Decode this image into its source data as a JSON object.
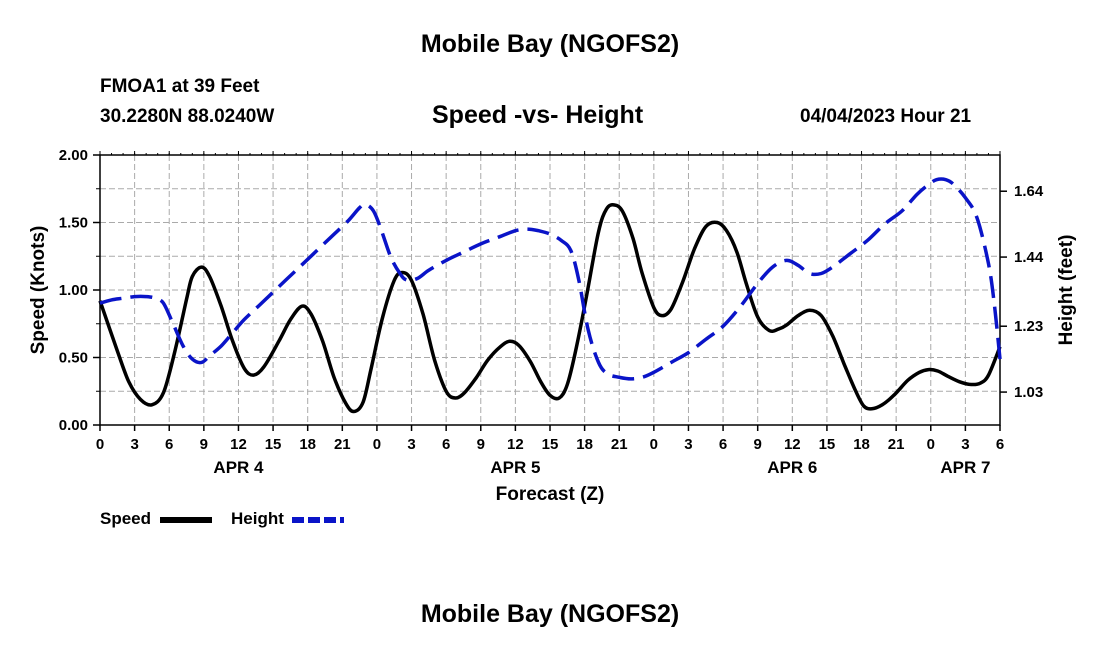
{
  "header": {
    "title": "Mobile Bay (NGOFS2)",
    "station": "FMOA1 at 39 Feet",
    "coords": "30.2280N  88.0240W",
    "subtitle": "Speed -vs- Height",
    "datetime": "04/04/2023 Hour 21",
    "footer_title": "Mobile Bay (NGOFS2)"
  },
  "legend": {
    "speed_label": "Speed",
    "height_label": "Height"
  },
  "colors": {
    "speed": "#000000",
    "height": "#0a14c8",
    "grid": "#aaaaaa"
  },
  "chart_data": {
    "type": "line",
    "title": "Speed -vs- Height",
    "xlabel": "Forecast (Z)",
    "ylabel": "Speed (Knots)",
    "y2label": "Height (feet)",
    "x_range_hours": [
      0,
      78
    ],
    "ylim": [
      0,
      2.0
    ],
    "y2lim": [
      0.93,
      1.75
    ],
    "yticks": [
      "0.00",
      "0.50",
      "1.00",
      "1.50",
      "2.00"
    ],
    "y2ticks": [
      "1.03",
      "1.23",
      "1.44",
      "1.64"
    ],
    "xtick_labels": [
      "0",
      "3",
      "6",
      "9",
      "12",
      "15",
      "18",
      "21",
      "0",
      "3",
      "6",
      "9",
      "12",
      "15",
      "18",
      "21",
      "0",
      "3",
      "6",
      "9",
      "12",
      "15",
      "18",
      "21",
      "0",
      "3",
      "6"
    ],
    "date_labels": [
      {
        "text": "APR 4",
        "hour": 12
      },
      {
        "text": "APR 5",
        "hour": 36
      },
      {
        "text": "APR 6",
        "hour": 60
      },
      {
        "text": "APR 7",
        "hour": 75
      }
    ],
    "grid": true,
    "series": [
      {
        "name": "Speed",
        "axis": "left",
        "style": "solid",
        "points": [
          [
            0,
            0.92
          ],
          [
            1.5,
            0.55
          ],
          [
            2.5,
            0.32
          ],
          [
            3.5,
            0.19
          ],
          [
            4.5,
            0.15
          ],
          [
            5.5,
            0.24
          ],
          [
            6.5,
            0.55
          ],
          [
            7.5,
            0.93
          ],
          [
            8,
            1.1
          ],
          [
            8.8,
            1.17
          ],
          [
            9.5,
            1.1
          ],
          [
            10.5,
            0.88
          ],
          [
            11.5,
            0.62
          ],
          [
            12.5,
            0.42
          ],
          [
            13.3,
            0.37
          ],
          [
            14.2,
            0.43
          ],
          [
            15.5,
            0.62
          ],
          [
            16.5,
            0.78
          ],
          [
            17.5,
            0.88
          ],
          [
            18.3,
            0.82
          ],
          [
            19.3,
            0.62
          ],
          [
            20.3,
            0.35
          ],
          [
            21.3,
            0.16
          ],
          [
            22,
            0.1
          ],
          [
            22.8,
            0.17
          ],
          [
            23.5,
            0.42
          ],
          [
            24.5,
            0.8
          ],
          [
            25.5,
            1.07
          ],
          [
            26.2,
            1.13
          ],
          [
            27,
            1.07
          ],
          [
            28,
            0.82
          ],
          [
            29,
            0.48
          ],
          [
            30,
            0.25
          ],
          [
            30.8,
            0.2
          ],
          [
            31.6,
            0.24
          ],
          [
            32.6,
            0.35
          ],
          [
            33.6,
            0.48
          ],
          [
            34.7,
            0.58
          ],
          [
            35.5,
            0.62
          ],
          [
            36.3,
            0.59
          ],
          [
            37.3,
            0.47
          ],
          [
            38.2,
            0.32
          ],
          [
            39,
            0.22
          ],
          [
            39.8,
            0.2
          ],
          [
            40.5,
            0.3
          ],
          [
            41.3,
            0.58
          ],
          [
            42.2,
            0.97
          ],
          [
            43.2,
            1.43
          ],
          [
            43.9,
            1.6
          ],
          [
            44.6,
            1.63
          ],
          [
            45.3,
            1.58
          ],
          [
            46.2,
            1.38
          ],
          [
            47,
            1.12
          ],
          [
            48,
            0.87
          ],
          [
            48.7,
            0.81
          ],
          [
            49.5,
            0.86
          ],
          [
            50.5,
            1.06
          ],
          [
            51.5,
            1.3
          ],
          [
            52.5,
            1.47
          ],
          [
            53.5,
            1.5
          ],
          [
            54.3,
            1.44
          ],
          [
            55.2,
            1.28
          ],
          [
            56,
            1.05
          ],
          [
            57,
            0.8
          ],
          [
            58,
            0.7
          ],
          [
            58.8,
            0.71
          ],
          [
            59.5,
            0.74
          ],
          [
            60.5,
            0.81
          ],
          [
            61.5,
            0.85
          ],
          [
            62.5,
            0.81
          ],
          [
            63.5,
            0.66
          ],
          [
            64.5,
            0.45
          ],
          [
            65.5,
            0.25
          ],
          [
            66.2,
            0.14
          ],
          [
            66.9,
            0.12
          ],
          [
            67.8,
            0.15
          ],
          [
            68.8,
            0.22
          ],
          [
            70,
            0.33
          ],
          [
            71,
            0.39
          ],
          [
            71.8,
            0.41
          ],
          [
            72.6,
            0.4
          ],
          [
            73.5,
            0.36
          ],
          [
            74.5,
            0.32
          ],
          [
            75.5,
            0.3
          ],
          [
            76.3,
            0.31
          ],
          [
            77,
            0.37
          ],
          [
            78,
            0.58
          ]
        ]
      },
      {
        "name": "Height",
        "axis": "right",
        "style": "dashed",
        "points": [
          [
            0,
            1.3
          ],
          [
            1,
            1.31
          ],
          [
            2,
            1.315
          ],
          [
            3,
            1.32
          ],
          [
            4,
            1.32
          ],
          [
            4.8,
            1.315
          ],
          [
            5.5,
            1.3
          ],
          [
            6.3,
            1.24
          ],
          [
            7.2,
            1.17
          ],
          [
            8,
            1.13
          ],
          [
            8.8,
            1.12
          ],
          [
            9.5,
            1.14
          ],
          [
            10.5,
            1.17
          ],
          [
            11.5,
            1.21
          ],
          [
            12.5,
            1.25
          ],
          [
            14,
            1.3
          ],
          [
            15.5,
            1.35
          ],
          [
            17,
            1.4
          ],
          [
            18.5,
            1.45
          ],
          [
            20,
            1.5
          ],
          [
            21.5,
            1.55
          ],
          [
            22.5,
            1.59
          ],
          [
            23,
            1.6
          ],
          [
            23.7,
            1.58
          ],
          [
            24.4,
            1.52
          ],
          [
            25.2,
            1.44
          ],
          [
            26,
            1.39
          ],
          [
            26.6,
            1.37
          ],
          [
            27.5,
            1.375
          ],
          [
            28.5,
            1.4
          ],
          [
            30,
            1.43
          ],
          [
            31.5,
            1.455
          ],
          [
            33,
            1.48
          ],
          [
            34.5,
            1.5
          ],
          [
            36,
            1.52
          ],
          [
            37,
            1.525
          ],
          [
            38,
            1.52
          ],
          [
            39,
            1.51
          ],
          [
            40,
            1.49
          ],
          [
            40.8,
            1.46
          ],
          [
            41.5,
            1.37
          ],
          [
            42.3,
            1.22
          ],
          [
            43.2,
            1.12
          ],
          [
            44,
            1.085
          ],
          [
            45,
            1.075
          ],
          [
            46,
            1.07
          ],
          [
            47,
            1.075
          ],
          [
            48,
            1.09
          ],
          [
            49.5,
            1.12
          ],
          [
            51,
            1.15
          ],
          [
            52.5,
            1.19
          ],
          [
            54,
            1.23
          ],
          [
            55.5,
            1.29
          ],
          [
            57,
            1.36
          ],
          [
            58.3,
            1.41
          ],
          [
            59.5,
            1.43
          ],
          [
            60.5,
            1.415
          ],
          [
            61.5,
            1.39
          ],
          [
            62.5,
            1.39
          ],
          [
            63.5,
            1.41
          ],
          [
            65,
            1.45
          ],
          [
            66.5,
            1.49
          ],
          [
            68,
            1.54
          ],
          [
            69.5,
            1.58
          ],
          [
            70.8,
            1.63
          ],
          [
            71.8,
            1.66
          ],
          [
            72.5,
            1.675
          ],
          [
            73.3,
            1.675
          ],
          [
            74,
            1.66
          ],
          [
            75,
            1.62
          ],
          [
            76,
            1.56
          ],
          [
            77,
            1.42
          ],
          [
            77.5,
            1.3
          ],
          [
            78,
            1.13
          ]
        ]
      }
    ]
  }
}
